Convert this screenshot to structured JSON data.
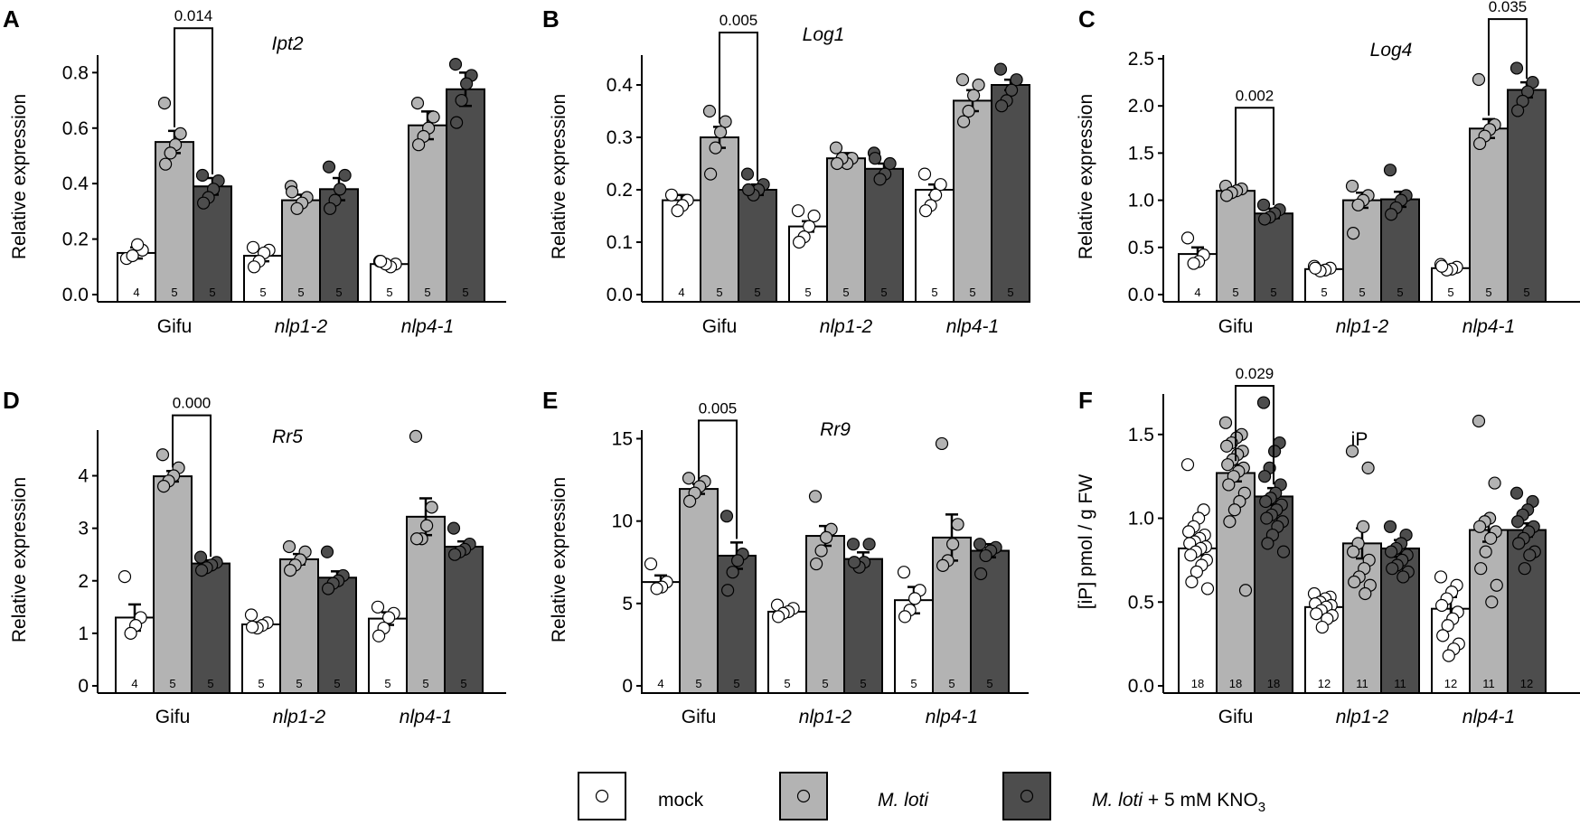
{
  "colors": {
    "mock": "#ffffff",
    "mloti": "#b3b3b3",
    "kno3": "#4d4d4d",
    "outline": "#000000"
  },
  "legend": {
    "items": [
      {
        "key": "mock",
        "label": "mock"
      },
      {
        "key": "mloti",
        "label": "M. loti"
      },
      {
        "key": "kno3",
        "label": "M. loti + 5 mM KNO",
        "subscript": "3"
      }
    ]
  },
  "chart_data": [
    {
      "panel": "A",
      "type": "bar",
      "title": "Ipt2",
      "ylabel": "Relative expression",
      "ylim": [
        0,
        0.85
      ],
      "yticks": [
        "0.0",
        "0.2",
        "0.4",
        "0.6",
        "0.8"
      ],
      "categories": [
        "Gifu",
        "nlp1-2",
        "nlp4-1"
      ],
      "series": [
        {
          "name": "mock",
          "values": [
            0.15,
            0.14,
            0.11
          ],
          "errors": [
            0.02,
            0.02,
            0.01
          ],
          "n": [
            "4",
            "5",
            "5"
          ],
          "points": [
            [
              0.13,
              0.16,
              0.18,
              0.14
            ],
            [
              0.17,
              0.16,
              0.15,
              0.12,
              0.1
            ],
            [
              0.12,
              0.11,
              0.1,
              0.11,
              0.12
            ]
          ]
        },
        {
          "name": "M. loti",
          "values": [
            0.55,
            0.34,
            0.61
          ],
          "errors": [
            0.04,
            0.02,
            0.05
          ],
          "n": [
            "5",
            "5",
            "5"
          ],
          "points": [
            [
              0.69,
              0.58,
              0.54,
              0.51,
              0.47
            ],
            [
              0.39,
              0.35,
              0.33,
              0.31,
              0.37
            ],
            [
              0.69,
              0.64,
              0.6,
              0.57,
              0.54
            ]
          ]
        },
        {
          "name": "M. loti + 5 mM KNO3",
          "values": [
            0.39,
            0.38,
            0.74
          ],
          "errors": [
            0.03,
            0.04,
            0.06
          ],
          "n": [
            "5",
            "5",
            "5"
          ],
          "points": [
            [
              0.43,
              0.41,
              0.38,
              0.35,
              0.33
            ],
            [
              0.46,
              0.43,
              0.38,
              0.34,
              0.31
            ],
            [
              0.83,
              0.79,
              0.76,
              0.7,
              0.62
            ]
          ]
        }
      ],
      "comparison": {
        "label": "0.014",
        "from": [
          0,
          1
        ],
        "to": [
          0,
          2
        ],
        "height": 0.96
      }
    },
    {
      "panel": "B",
      "type": "bar",
      "title": "Log1",
      "ylabel": "Relative expression",
      "ylim": [
        0,
        0.45
      ],
      "yticks": [
        "0.0",
        "0.1",
        "0.2",
        "0.3",
        "0.4"
      ],
      "categories": [
        "Gifu",
        "nlp1-2",
        "nlp4-1"
      ],
      "series": [
        {
          "name": "mock",
          "values": [
            0.18,
            0.13,
            0.2
          ],
          "errors": [
            0.01,
            0.01,
            0.01
          ],
          "n": [
            "4",
            "5",
            "5"
          ],
          "points": [
            [
              0.19,
              0.18,
              0.17,
              0.16
            ],
            [
              0.16,
              0.15,
              0.13,
              0.11,
              0.1
            ],
            [
              0.23,
              0.21,
              0.19,
              0.17,
              0.16
            ]
          ]
        },
        {
          "name": "M. loti",
          "values": [
            0.3,
            0.26,
            0.37
          ],
          "errors": [
            0.02,
            0.01,
            0.02
          ],
          "n": [
            "5",
            "5",
            "5"
          ],
          "points": [
            [
              0.35,
              0.33,
              0.31,
              0.28,
              0.23
            ],
            [
              0.28,
              0.26,
              0.25,
              0.26,
              0.25
            ],
            [
              0.41,
              0.4,
              0.38,
              0.35,
              0.33
            ]
          ]
        },
        {
          "name": "M. loti + 5 mM KNO3",
          "values": [
            0.2,
            0.24,
            0.4
          ],
          "errors": [
            0.01,
            0.01,
            0.01
          ],
          "n": [
            "5",
            "5",
            "5"
          ],
          "points": [
            [
              0.23,
              0.21,
              0.2,
              0.19,
              0.2
            ],
            [
              0.27,
              0.25,
              0.23,
              0.22,
              0.26
            ],
            [
              0.43,
              0.41,
              0.39,
              0.37,
              0.36
            ]
          ]
        }
      ],
      "comparison": {
        "label": "0.005",
        "from": [
          0,
          1
        ],
        "to": [
          0,
          2
        ],
        "height": 0.5
      }
    },
    {
      "panel": "C",
      "type": "bar",
      "title": "Log4",
      "ylabel": "Relative expression",
      "ylim": [
        0,
        2.5
      ],
      "yticks": [
        "0.0",
        "0.5",
        "1.0",
        "1.5",
        "2.0",
        "2.5"
      ],
      "categories": [
        "Gifu",
        "nlp1-2",
        "nlp4-1"
      ],
      "series": [
        {
          "name": "mock",
          "values": [
            0.43,
            0.27,
            0.28
          ],
          "errors": [
            0.07,
            0.02,
            0.02
          ],
          "n": [
            "4",
            "5",
            "5"
          ],
          "points": [
            [
              0.6,
              0.42,
              0.35,
              0.33
            ],
            [
              0.3,
              0.28,
              0.26,
              0.25,
              0.28
            ],
            [
              0.32,
              0.29,
              0.27,
              0.26,
              0.3
            ]
          ]
        },
        {
          "name": "M. loti",
          "values": [
            1.1,
            1.0,
            1.76
          ],
          "errors": [
            0.03,
            0.08,
            0.1
          ],
          "n": [
            "5",
            "5",
            "5"
          ],
          "points": [
            [
              1.15,
              1.12,
              1.1,
              1.08,
              1.05
            ],
            [
              1.15,
              1.05,
              1.0,
              0.95,
              0.65
            ],
            [
              2.28,
              1.8,
              1.75,
              1.68,
              1.6
            ]
          ]
        },
        {
          "name": "M. loti + 5 mM KNO3",
          "values": [
            0.86,
            1.01,
            2.17
          ],
          "errors": [
            0.05,
            0.08,
            0.08
          ],
          "n": [
            "5",
            "5",
            "5"
          ],
          "points": [
            [
              0.95,
              0.9,
              0.86,
              0.82,
              0.8
            ],
            [
              1.32,
              1.05,
              1.0,
              0.92,
              0.85
            ],
            [
              2.4,
              2.25,
              2.15,
              2.05,
              1.95
            ]
          ]
        }
      ],
      "comparison": {
        "label": "0.002",
        "from": [
          0,
          1
        ],
        "to": [
          0,
          2
        ],
        "height": 1.98,
        "second": {
          "label": "0.035",
          "from": [
            2,
            1
          ],
          "to": [
            2,
            2
          ],
          "height": 2.92
        }
      }
    },
    {
      "panel": "D",
      "type": "bar",
      "title": "Rr5",
      "ylabel": "Relative expression",
      "ylim": [
        0,
        4.8
      ],
      "yticks": [
        "0",
        "1",
        "2",
        "3",
        "4"
      ],
      "categories": [
        "Gifu",
        "nlp1-2",
        "nlp4-1"
      ],
      "series": [
        {
          "name": "mock",
          "values": [
            1.3,
            1.17,
            1.28
          ],
          "errors": [
            0.25,
            0.04,
            0.12
          ],
          "n": [
            "4",
            "5",
            "5"
          ],
          "points": [
            [
              2.08,
              1.3,
              1.15,
              1.0
            ],
            [
              1.35,
              1.2,
              1.15,
              1.1,
              1.12
            ],
            [
              1.5,
              1.38,
              1.3,
              1.1,
              0.95
            ]
          ]
        },
        {
          "name": "M. loti",
          "values": [
            3.99,
            2.41,
            3.22
          ],
          "errors": [
            0.1,
            0.1,
            0.35
          ],
          "n": [
            "5",
            "5",
            "5"
          ],
          "points": [
            [
              4.4,
              4.15,
              4.0,
              3.9,
              3.8
            ],
            [
              2.65,
              2.55,
              2.4,
              2.3,
              2.2
            ],
            [
              4.75,
              3.4,
              3.05,
              2.8,
              2.8
            ]
          ]
        },
        {
          "name": "M. loti + 5 mM KNO3",
          "values": [
            2.33,
            2.06,
            2.65
          ],
          "errors": [
            0.06,
            0.12,
            0.1
          ],
          "n": [
            "5",
            "5",
            "5"
          ],
          "points": [
            [
              2.45,
              2.35,
              2.3,
              2.25,
              2.2
            ],
            [
              2.55,
              2.1,
              2.0,
              1.95,
              1.85
            ],
            [
              3.0,
              2.7,
              2.6,
              2.55,
              2.5
            ]
          ]
        }
      ],
      "comparison": {
        "label": "0.000",
        "from": [
          0,
          1
        ],
        "to": [
          0,
          2
        ],
        "height": 5.15
      }
    },
    {
      "panel": "E",
      "type": "bar",
      "title": "Rr9",
      "ylabel": "Relative expression",
      "ylim": [
        0,
        15.3
      ],
      "yticks": [
        "0",
        "5",
        "10",
        "15"
      ],
      "categories": [
        "Gifu",
        "nlp1-2",
        "nlp4-1"
      ],
      "series": [
        {
          "name": "mock",
          "values": [
            6.3,
            4.5,
            5.2
          ],
          "errors": [
            0.4,
            0.2,
            0.8
          ],
          "n": [
            "4",
            "5",
            "5"
          ],
          "points": [
            [
              7.4,
              6.3,
              6.0,
              5.9
            ],
            [
              4.9,
              4.7,
              4.5,
              4.4,
              4.2
            ],
            [
              6.9,
              5.8,
              5.3,
              4.6,
              4.2
            ]
          ]
        },
        {
          "name": "M. loti",
          "values": [
            11.95,
            9.1,
            9.0
          ],
          "errors": [
            0.3,
            0.6,
            1.4
          ],
          "n": [
            "5",
            "5",
            "5"
          ],
          "points": [
            [
              12.6,
              12.4,
              12.1,
              11.7,
              11.2
            ],
            [
              11.5,
              9.5,
              9.0,
              8.2,
              7.4
            ],
            [
              14.7,
              9.8,
              8.6,
              7.6,
              7.3
            ]
          ]
        },
        {
          "name": "M. loti + 5 mM KNO3",
          "values": [
            7.9,
            7.7,
            8.2
          ],
          "errors": [
            0.8,
            0.4,
            0.4
          ],
          "n": [
            "5",
            "5",
            "5"
          ],
          "points": [
            [
              10.3,
              8.0,
              7.6,
              6.9,
              5.8
            ],
            [
              8.6,
              8.6,
              7.5,
              7.2,
              7.5
            ],
            [
              8.6,
              8.4,
              8.2,
              7.9,
              6.8
            ]
          ]
        }
      ],
      "comparison": {
        "label": "0.005",
        "from": [
          0,
          1
        ],
        "to": [
          0,
          2
        ],
        "height": 16.1
      }
    },
    {
      "panel": "F",
      "type": "bar",
      "title": "iP",
      "ylabel": "[iP] pmol / g FW",
      "ylim": [
        0,
        1.72
      ],
      "yticks": [
        "0.0",
        "0.5",
        "1.0",
        "1.5"
      ],
      "categories": [
        "Gifu",
        "nlp1-2",
        "nlp4-1"
      ],
      "series": [
        {
          "name": "mock",
          "values": [
            0.82,
            0.47,
            0.46
          ],
          "errors": [
            0.04,
            0.02,
            0.07
          ],
          "n": [
            "18",
            "12",
            "12"
          ],
          "points": [
            [
              1.32,
              1.05,
              1.0,
              0.95,
              0.92,
              0.9,
              0.88,
              0.86,
              0.85,
              0.83,
              0.82,
              0.8,
              0.78,
              0.75,
              0.72,
              0.68,
              0.62,
              0.58
            ],
            [
              0.55,
              0.53,
              0.52,
              0.5,
              0.49,
              0.48,
              0.47,
              0.45,
              0.43,
              0.42,
              0.4,
              0.35
            ],
            [
              0.65,
              0.6,
              0.56,
              0.52,
              0.48,
              0.44,
              0.4,
              0.36,
              0.3,
              0.25,
              0.22,
              0.18
            ]
          ]
        },
        {
          "name": "M. loti",
          "values": [
            1.27,
            0.85,
            0.93
          ],
          "errors": [
            0.05,
            0.09,
            0.07
          ],
          "n": [
            "18",
            "11",
            "11"
          ],
          "points": [
            [
              1.57,
              1.5,
              1.48,
              1.45,
              1.43,
              1.4,
              1.38,
              1.35,
              1.32,
              1.3,
              1.28,
              1.25,
              1.2,
              1.15,
              1.1,
              1.05,
              0.98,
              0.57
            ],
            [
              1.4,
              1.3,
              0.95,
              0.85,
              0.8,
              0.75,
              0.7,
              0.65,
              0.62,
              0.6,
              0.55
            ],
            [
              1.58,
              1.21,
              1.0,
              0.98,
              0.95,
              0.92,
              0.88,
              0.8,
              0.7,
              0.6,
              0.5
            ]
          ]
        },
        {
          "name": "M. loti + 5 mM KNO3",
          "values": [
            1.13,
            0.82,
            0.93
          ],
          "errors": [
            0.05,
            0.05,
            0.04
          ],
          "n": [
            "18",
            "11",
            "12"
          ],
          "points": [
            [
              1.69,
              1.45,
              1.4,
              1.3,
              1.25,
              1.2,
              1.15,
              1.12,
              1.1,
              1.08,
              1.05,
              1.02,
              1.0,
              0.98,
              0.95,
              0.9,
              0.85,
              0.8
            ],
            [
              0.95,
              0.9,
              0.85,
              0.82,
              0.8,
              0.78,
              0.75,
              0.72,
              0.7,
              0.68,
              0.65
            ],
            [
              1.15,
              1.1,
              1.05,
              1.02,
              0.98,
              0.95,
              0.92,
              0.88,
              0.85,
              0.8,
              0.78,
              0.7
            ]
          ]
        }
      ],
      "comparison": {
        "label": "0.029",
        "from": [
          0,
          1
        ],
        "to": [
          0,
          2
        ],
        "height": 1.79
      }
    }
  ]
}
